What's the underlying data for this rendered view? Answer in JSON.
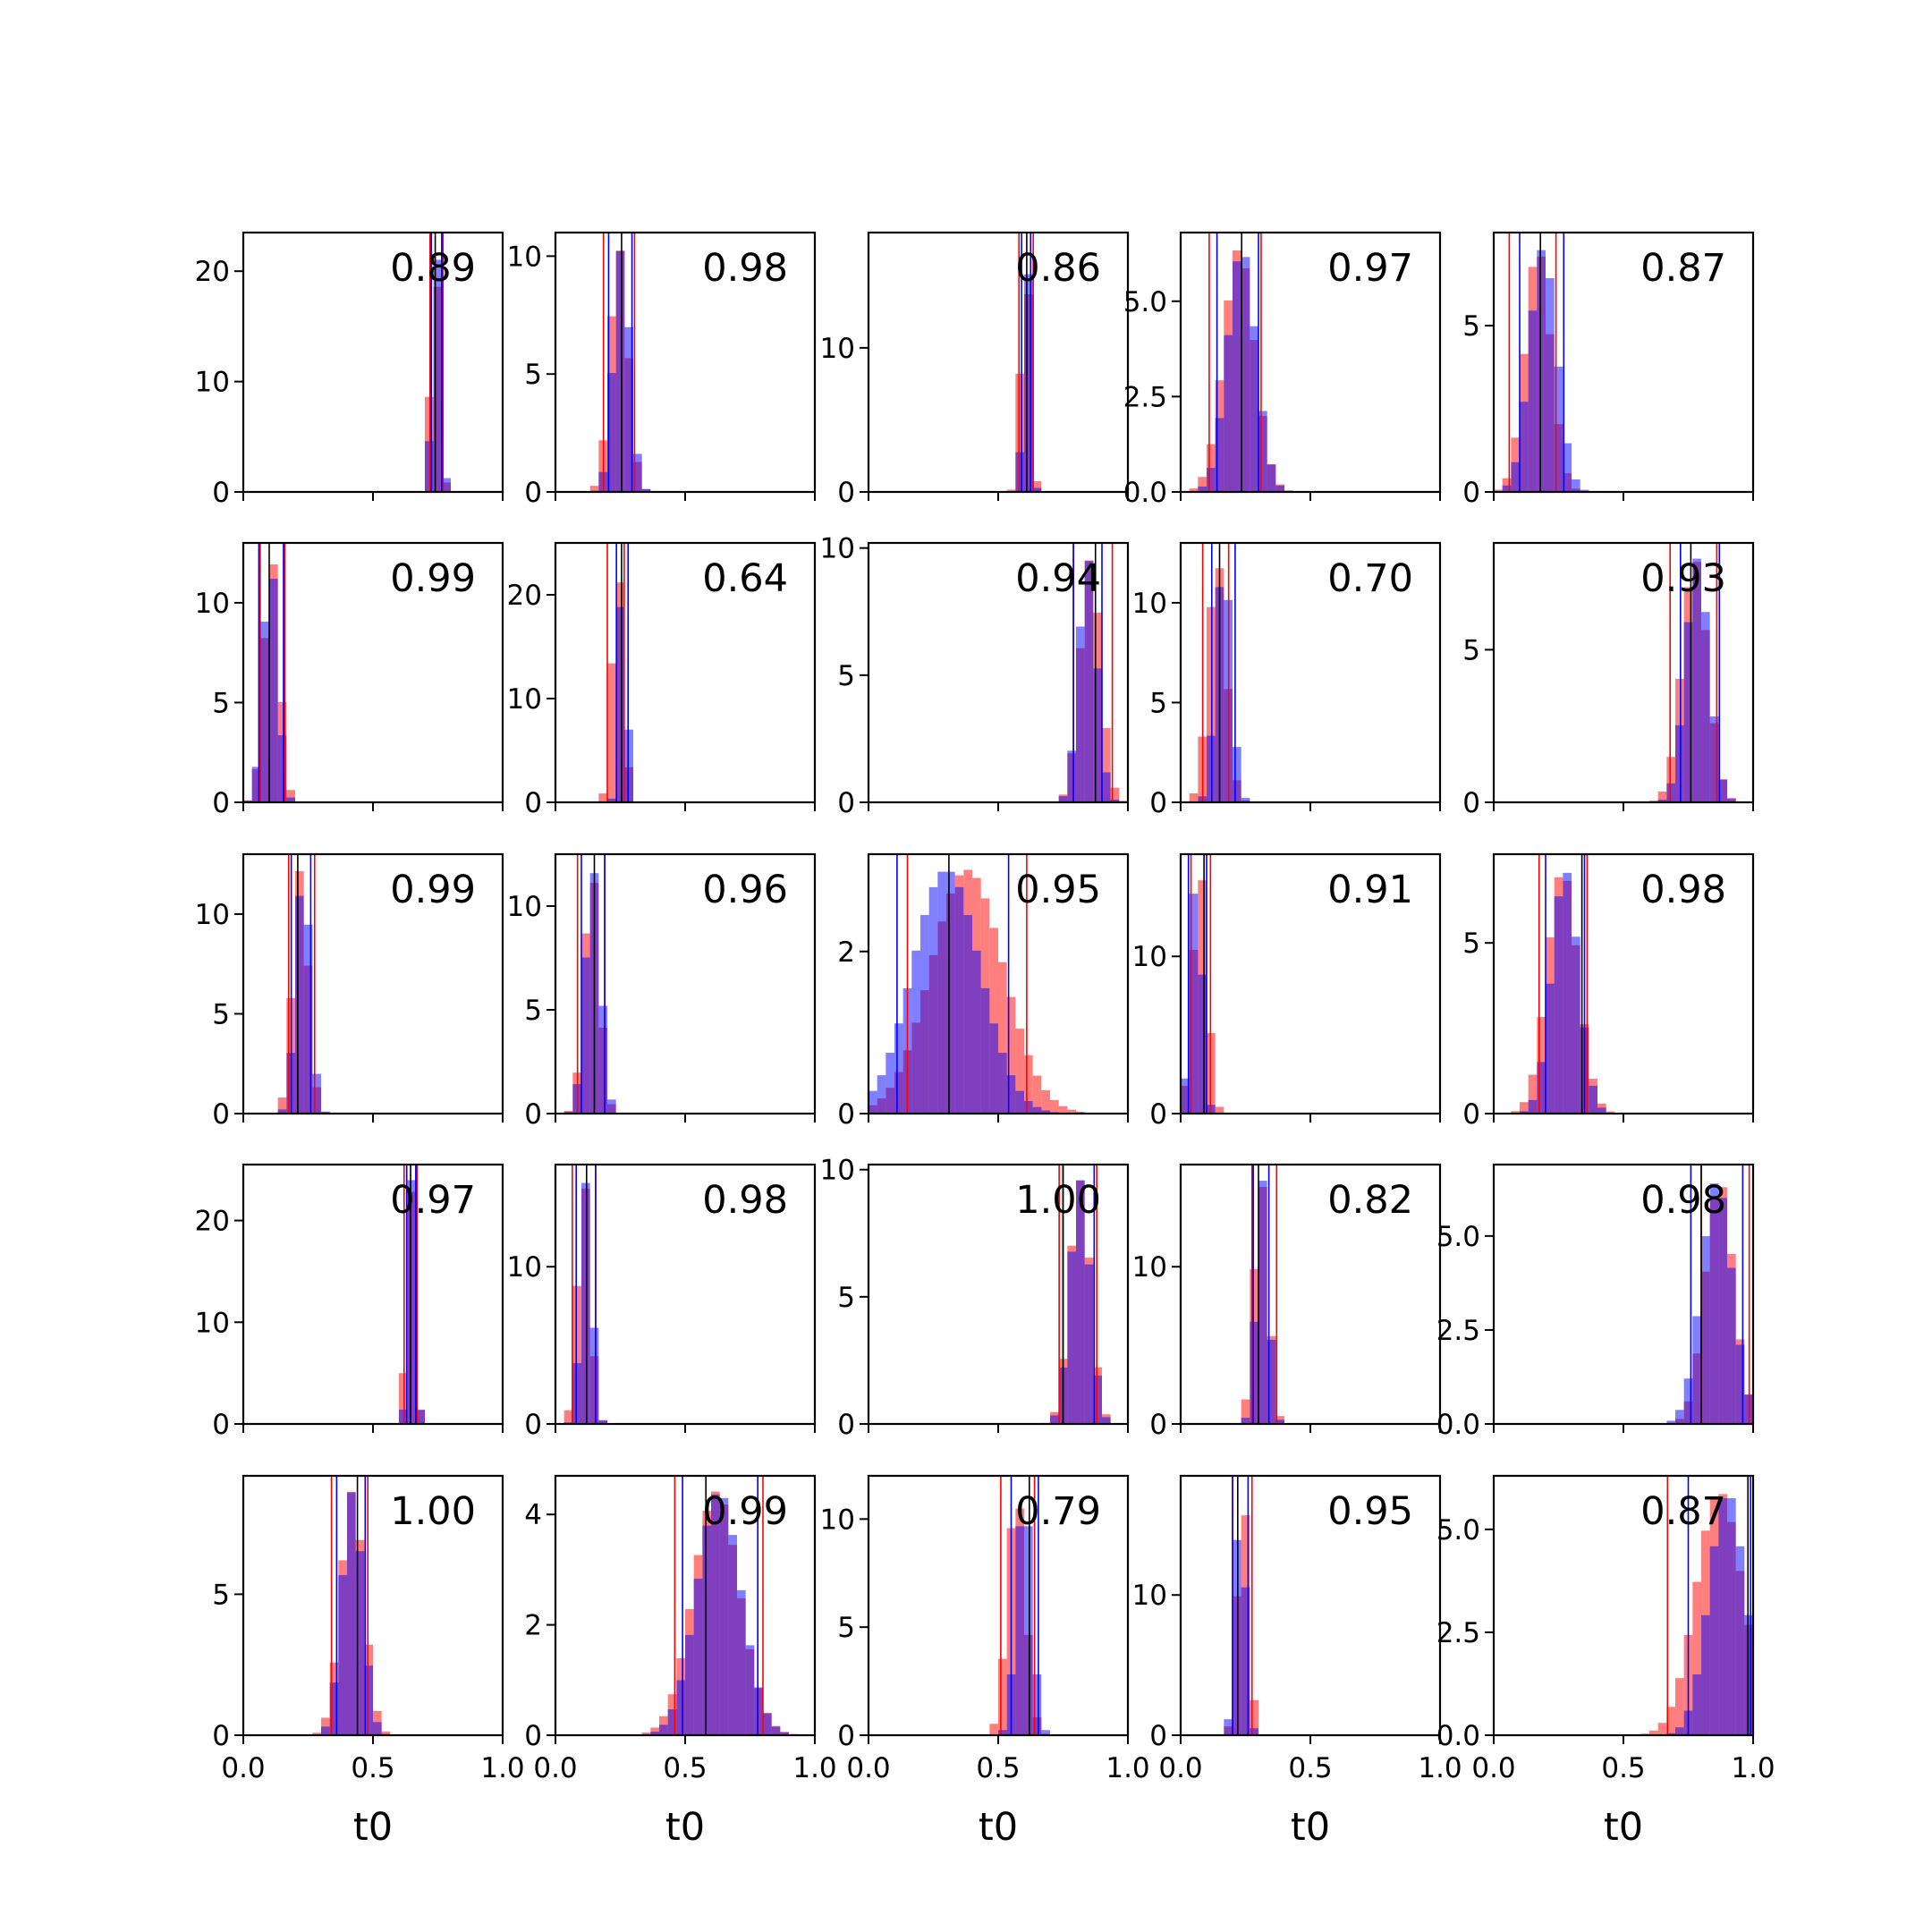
{
  "chart_data": {
    "type": "histogram-grid",
    "rows": 5,
    "cols": 5,
    "xlim": [
      0,
      1
    ],
    "x_ticks": [
      0.0,
      0.5,
      1.0
    ],
    "x_tick_labels": [
      "0.0",
      "0.5",
      "1.0"
    ],
    "xlabel": "t0",
    "colors": {
      "red": "#ff0000",
      "blue": "#0000ff",
      "overlap": "#7f3fbf",
      "marker": "#000000"
    },
    "panels": [
      {
        "score": "0.89",
        "ylim": [
          0,
          23.5
        ],
        "y_ticks": [
          0,
          10,
          20
        ],
        "y_tick_labels": [
          "0",
          "10",
          "20"
        ],
        "red": {
          "mean": 0.74,
          "sd": 0.017,
          "lo": 0.72,
          "hi": 0.77
        },
        "blue": {
          "mean": 0.745,
          "sd": 0.016,
          "lo": 0.725,
          "hi": 0.765
        },
        "truth": 0.74
      },
      {
        "score": "0.98",
        "ylim": [
          0,
          11
        ],
        "y_ticks": [
          0,
          5,
          10
        ],
        "y_tick_labels": [
          "0",
          "5",
          "10"
        ],
        "red": {
          "mean": 0.245,
          "sd": 0.035,
          "lo": 0.185,
          "hi": 0.305
        },
        "blue": {
          "mean": 0.255,
          "sd": 0.032,
          "lo": 0.205,
          "hi": 0.295
        },
        "truth": 0.255
      },
      {
        "score": "0.86",
        "ylim": [
          0,
          18
        ],
        "y_ticks": [
          0,
          10
        ],
        "y_tick_labels": [
          "0",
          "10"
        ],
        "red": {
          "mean": 0.605,
          "sd": 0.018,
          "lo": 0.58,
          "hi": 0.635
        },
        "blue": {
          "mean": 0.61,
          "sd": 0.014,
          "lo": 0.59,
          "hi": 0.625
        },
        "truth": 0.61
      },
      {
        "score": "0.97",
        "ylim": [
          0,
          6.8
        ],
        "y_ticks": [
          0.0,
          2.5,
          5.0
        ],
        "y_tick_labels": [
          "0.0",
          "2.5",
          "5.0"
        ],
        "red": {
          "mean": 0.225,
          "sd": 0.06,
          "lo": 0.11,
          "hi": 0.31
        },
        "blue": {
          "mean": 0.235,
          "sd": 0.055,
          "lo": 0.14,
          "hi": 0.3
        },
        "truth": 0.235
      },
      {
        "score": "0.87",
        "ylim": [
          0,
          7.8
        ],
        "y_ticks": [
          0,
          5
        ],
        "y_tick_labels": [
          "0",
          "5"
        ],
        "red": {
          "mean": 0.17,
          "sd": 0.05,
          "lo": 0.06,
          "hi": 0.24
        },
        "blue": {
          "mean": 0.19,
          "sd": 0.052,
          "lo": 0.1,
          "hi": 0.27
        },
        "truth": 0.18
      },
      {
        "score": "0.99",
        "ylim": [
          0,
          13
        ],
        "y_ticks": [
          0,
          5,
          10
        ],
        "y_tick_labels": [
          "0",
          "5",
          "10"
        ],
        "red": {
          "mean": 0.11,
          "sd": 0.03,
          "lo": 0.065,
          "hi": 0.16
        },
        "blue": {
          "mean": 0.105,
          "sd": 0.028,
          "lo": 0.06,
          "hi": 0.155
        },
        "truth": 0.1
      },
      {
        "score": "0.64",
        "ylim": [
          0,
          25
        ],
        "y_ticks": [
          0,
          10,
          20
        ],
        "y_tick_labels": [
          "0",
          "10",
          "20"
        ],
        "red": {
          "mean": 0.24,
          "sd": 0.022,
          "lo": 0.2,
          "hi": 0.265
        },
        "blue": {
          "mean": 0.26,
          "sd": 0.015,
          "lo": 0.235,
          "hi": 0.28
        },
        "truth": 0.255
      },
      {
        "score": "0.94",
        "ylim": [
          0,
          10.2
        ],
        "y_ticks": [
          0,
          5,
          10
        ],
        "y_tick_labels": [
          "0",
          "5",
          "10"
        ],
        "red": {
          "mean": 0.855,
          "sd": 0.04,
          "lo": 0.79,
          "hi": 0.94
        },
        "blue": {
          "mean": 0.845,
          "sd": 0.035,
          "lo": 0.79,
          "hi": 0.9
        },
        "truth": 0.875
      },
      {
        "score": "0.70",
        "ylim": [
          0,
          13
        ],
        "y_ticks": [
          0,
          5,
          10
        ],
        "y_tick_labels": [
          "0",
          "5",
          "10"
        ],
        "red": {
          "mean": 0.14,
          "sd": 0.035,
          "lo": 0.085,
          "hi": 0.185
        },
        "blue": {
          "mean": 0.165,
          "sd": 0.03,
          "lo": 0.12,
          "hi": 0.21
        },
        "truth": 0.15
      },
      {
        "score": "0.93",
        "ylim": [
          0,
          8.5
        ],
        "y_ticks": [
          0,
          5
        ],
        "y_tick_labels": [
          "0",
          "5"
        ],
        "red": {
          "mean": 0.775,
          "sd": 0.05,
          "lo": 0.68,
          "hi": 0.86
        },
        "blue": {
          "mean": 0.785,
          "sd": 0.045,
          "lo": 0.72,
          "hi": 0.87
        },
        "truth": 0.76
      },
      {
        "score": "0.99",
        "ylim": [
          0,
          13
        ],
        "y_ticks": [
          0,
          5,
          10
        ],
        "y_tick_labels": [
          "0",
          "5",
          "10"
        ],
        "red": {
          "mean": 0.22,
          "sd": 0.03,
          "lo": 0.175,
          "hi": 0.275
        },
        "blue": {
          "mean": 0.23,
          "sd": 0.028,
          "lo": 0.185,
          "hi": 0.26
        },
        "truth": 0.21
      },
      {
        "score": "0.96",
        "ylim": [
          0,
          12.5
        ],
        "y_ticks": [
          0,
          5,
          10
        ],
        "y_tick_labels": [
          "0",
          "5",
          "10"
        ],
        "red": {
          "mean": 0.14,
          "sd": 0.03,
          "lo": 0.085,
          "hi": 0.19
        },
        "blue": {
          "mean": 0.145,
          "sd": 0.03,
          "lo": 0.1,
          "hi": 0.19
        },
        "truth": 0.15
      },
      {
        "score": "0.95",
        "ylim": [
          0,
          3.2
        ],
        "y_ticks": [
          0,
          2
        ],
        "y_tick_labels": [
          "0",
          "2"
        ],
        "red": {
          "mean": 0.38,
          "sd": 0.14,
          "lo": 0.15,
          "hi": 0.61
        },
        "blue": {
          "mean": 0.3,
          "sd": 0.13,
          "lo": 0.11,
          "hi": 0.54
        },
        "truth": 0.31
      },
      {
        "score": "0.91",
        "ylim": [
          0,
          16.5
        ],
        "y_ticks": [
          0,
          10
        ],
        "y_tick_labels": [
          "0",
          "10"
        ],
        "red": {
          "mean": 0.075,
          "sd": 0.028,
          "lo": 0.04,
          "hi": 0.115
        },
        "blue": {
          "mean": 0.06,
          "sd": 0.022,
          "lo": 0.03,
          "hi": 0.1
        },
        "truth": 0.09
      },
      {
        "score": "0.98",
        "ylim": [
          0,
          7.6
        ],
        "y_ticks": [
          0,
          5
        ],
        "y_tick_labels": [
          "0",
          "5"
        ],
        "red": {
          "mean": 0.265,
          "sd": 0.06,
          "lo": 0.175,
          "hi": 0.36
        },
        "blue": {
          "mean": 0.275,
          "sd": 0.052,
          "lo": 0.2,
          "hi": 0.35
        },
        "truth": 0.34
      },
      {
        "score": "0.97",
        "ylim": [
          0,
          25.5
        ],
        "y_ticks": [
          0,
          10,
          20
        ],
        "y_tick_labels": [
          "0",
          "10",
          "20"
        ],
        "red": {
          "mean": 0.645,
          "sd": 0.016,
          "lo": 0.62,
          "hi": 0.67
        },
        "blue": {
          "mean": 0.65,
          "sd": 0.014,
          "lo": 0.63,
          "hi": 0.665
        },
        "truth": 0.645
      },
      {
        "score": "0.98",
        "ylim": [
          0,
          16.5
        ],
        "y_ticks": [
          0,
          10
        ],
        "y_tick_labels": [
          "0",
          "10"
        ],
        "red": {
          "mean": 0.11,
          "sd": 0.025,
          "lo": 0.065,
          "hi": 0.155
        },
        "blue": {
          "mean": 0.12,
          "sd": 0.022,
          "lo": 0.08,
          "hi": 0.155
        },
        "truth": 0.12
      },
      {
        "score": "1.00",
        "ylim": [
          0,
          10.2
        ],
        "y_ticks": [
          0,
          5,
          10
        ],
        "y_tick_labels": [
          "0",
          "5",
          "10"
        ],
        "red": {
          "mean": 0.815,
          "sd": 0.04,
          "lo": 0.735,
          "hi": 0.88
        },
        "blue": {
          "mean": 0.815,
          "sd": 0.038,
          "lo": 0.75,
          "hi": 0.87
        },
        "truth": 0.75
      },
      {
        "score": "0.82",
        "ylim": [
          0,
          16.5
        ],
        "y_ticks": [
          0,
          10
        ],
        "y_tick_labels": [
          "0",
          "10"
        ],
        "red": {
          "mean": 0.31,
          "sd": 0.028,
          "lo": 0.275,
          "hi": 0.37
        },
        "blue": {
          "mean": 0.315,
          "sd": 0.024,
          "lo": 0.28,
          "hi": 0.34
        },
        "truth": 0.3
      },
      {
        "score": "0.98",
        "ylim": [
          0,
          6.9
        ],
        "y_ticks": [
          0.0,
          2.5,
          5.0
        ],
        "y_tick_labels": [
          "0.0",
          "2.5",
          "5.0"
        ],
        "red": {
          "mean": 0.87,
          "sd": 0.055,
          "lo": 0.8,
          "hi": 0.985
        },
        "blue": {
          "mean": 0.86,
          "sd": 0.06,
          "lo": 0.76,
          "hi": 0.96
        },
        "truth": 0.8
      },
      {
        "score": "1.00",
        "ylim": [
          0,
          9.2
        ],
        "y_ticks": [
          0,
          5
        ],
        "y_tick_labels": [
          "0",
          "5"
        ],
        "red": {
          "mean": 0.42,
          "sd": 0.045,
          "lo": 0.34,
          "hi": 0.48
        },
        "blue": {
          "mean": 0.42,
          "sd": 0.04,
          "lo": 0.36,
          "hi": 0.47
        },
        "truth": 0.44
      },
      {
        "score": "0.99",
        "ylim": [
          0,
          4.7
        ],
        "y_ticks": [
          0,
          2,
          4
        ],
        "y_tick_labels": [
          "0",
          "2",
          "4"
        ],
        "red": {
          "mean": 0.62,
          "sd": 0.09,
          "lo": 0.46,
          "hi": 0.8
        },
        "blue": {
          "mean": 0.63,
          "sd": 0.085,
          "lo": 0.49,
          "hi": 0.78
        },
        "truth": 0.58
      },
      {
        "score": "0.79",
        "ylim": [
          0,
          12
        ],
        "y_ticks": [
          0,
          5,
          10
        ],
        "y_tick_labels": [
          "0",
          "5",
          "10"
        ],
        "red": {
          "mean": 0.57,
          "sd": 0.035,
          "lo": 0.51,
          "hi": 0.64
        },
        "blue": {
          "mean": 0.6,
          "sd": 0.03,
          "lo": 0.55,
          "hi": 0.655
        },
        "truth": 0.62
      },
      {
        "score": "0.95",
        "ylim": [
          0,
          18.5
        ],
        "y_ticks": [
          0,
          10
        ],
        "y_tick_labels": [
          "0",
          "10"
        ],
        "red": {
          "mean": 0.24,
          "sd": 0.022,
          "lo": 0.2,
          "hi": 0.275
        },
        "blue": {
          "mean": 0.23,
          "sd": 0.02,
          "lo": 0.2,
          "hi": 0.26
        },
        "truth": 0.22
      },
      {
        "score": "0.87",
        "ylim": [
          0,
          6.3
        ],
        "y_ticks": [
          0.0,
          2.5,
          5.0
        ],
        "y_tick_labels": [
          "0.0",
          "2.5",
          "5.0"
        ],
        "red": {
          "mean": 0.87,
          "sd": 0.09,
          "lo": 0.67,
          "hi": 1.0
        },
        "blue": {
          "mean": 0.9,
          "sd": 0.07,
          "lo": 0.75,
          "hi": 0.99
        },
        "truth": 0.98
      }
    ]
  }
}
